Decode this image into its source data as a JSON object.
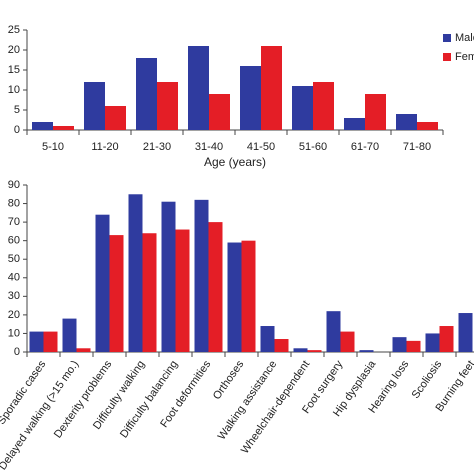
{
  "chart_data": [
    {
      "type": "bar",
      "x_label": "Age (years)",
      "categories": [
        "5-10",
        "11-20",
        "21-30",
        "31-40",
        "41-50",
        "51-60",
        "61-70",
        "71-80"
      ],
      "series": [
        {
          "name": "Male",
          "color": "#2f3b9f",
          "values": [
            2,
            12,
            18,
            21,
            16,
            11,
            3,
            4
          ]
        },
        {
          "name": "Female",
          "color": "#e41e26",
          "values": [
            1,
            6,
            12,
            9,
            21,
            12,
            9,
            2
          ]
        }
      ],
      "ylim": [
        0,
        25
      ],
      "yticks": [
        0,
        5,
        10,
        15,
        20,
        25
      ],
      "legend": "top-right"
    },
    {
      "type": "bar",
      "categories": [
        "Sporadic cases",
        "Delayed walking (>15 mo.)",
        "Dexterity problems",
        "Difficulty walking",
        "Difficulty balancing",
        "Foot deformities",
        "Orthoses",
        "Walking assistance",
        "Wheelchair-dependent",
        "Foot surgery",
        "Hip dysplasia",
        "Hearing loss",
        "Scoliosis",
        "Burning feet"
      ],
      "series": [
        {
          "color": "#2f3b9f",
          "values": [
            11,
            18,
            74,
            85,
            81,
            82,
            59,
            14,
            2,
            22,
            1,
            8,
            10,
            21
          ]
        },
        {
          "color": "#e41e26",
          "values": [
            11,
            2,
            63,
            64,
            66,
            70,
            60,
            7,
            1,
            11,
            0,
            6,
            14,
            null
          ]
        }
      ],
      "ylim": [
        0,
        90
      ],
      "yticks": [
        0,
        10,
        20,
        30,
        40,
        50,
        60,
        70,
        80,
        90
      ]
    }
  ]
}
